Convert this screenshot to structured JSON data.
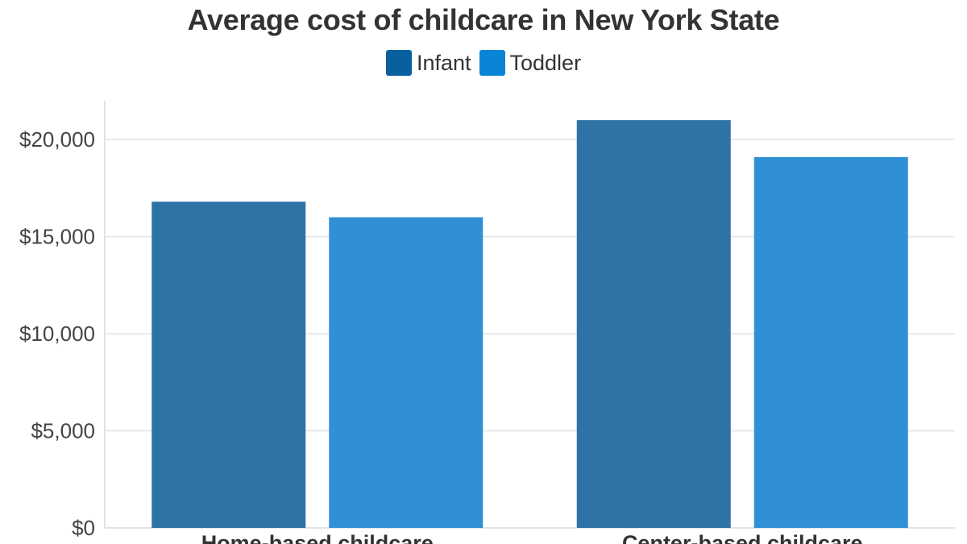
{
  "chart_data": {
    "type": "bar",
    "title": "Average cost of childcare in New York State",
    "xlabel": "",
    "ylabel": "",
    "categories": [
      "Home-based childcare",
      "Center-based childcare"
    ],
    "series": [
      {
        "name": "Infant",
        "color": "#2e73a6",
        "values": [
          16800,
          21000
        ]
      },
      {
        "name": "Toddler",
        "color": "#3090d6",
        "values": [
          16000,
          19100
        ]
      }
    ],
    "ylim": [
      0,
      22000
    ],
    "yticks": [
      {
        "value": 0,
        "label": "$0"
      },
      {
        "value": 5000,
        "label": "$5,000"
      },
      {
        "value": 10000,
        "label": "$10,000"
      },
      {
        "value": 15000,
        "label": "$15,000"
      },
      {
        "value": 20000,
        "label": "$20,000"
      }
    ],
    "grid": true,
    "legend_position": "top-center"
  },
  "legend_colors": {
    "Infant": "#09609e",
    "Toddler": "#0a84d4"
  }
}
